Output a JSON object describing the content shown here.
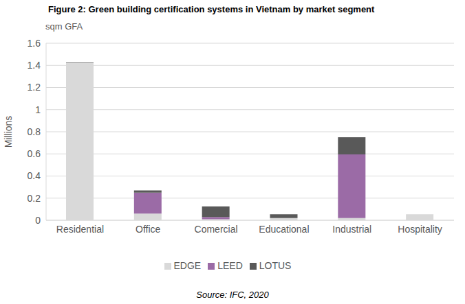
{
  "chart_data": {
    "type": "bar",
    "title": "Figure 2: Green building certification systems in Vietnam by market segment",
    "subtitle": "sqm GFA",
    "y_label": "Millions",
    "source": "Source: IFC, 2020",
    "categories": [
      "Residential",
      "Office",
      "Comercial",
      "Educational",
      "Industrial",
      "Hospitality"
    ],
    "series": [
      {
        "name": "EDGE",
        "color": "#d9d9d9",
        "values": [
          1.42,
          0.06,
          0.01,
          0.02,
          0.02,
          0.055
        ]
      },
      {
        "name": "LEED",
        "color": "#9b6ba6",
        "values": [
          0,
          0.19,
          0.02,
          0,
          0.575,
          0
        ]
      },
      {
        "name": "LOTUS",
        "color": "#595959",
        "values": [
          0.005,
          0.02,
          0.095,
          0.035,
          0.155,
          0
        ]
      }
    ],
    "ylim": [
      0,
      1.6
    ],
    "yticks": [
      0,
      0.2,
      0.4,
      0.6,
      0.8,
      1,
      1.2,
      1.4,
      1.6
    ],
    "grid": true,
    "stacked": true,
    "legend": "bottom"
  }
}
